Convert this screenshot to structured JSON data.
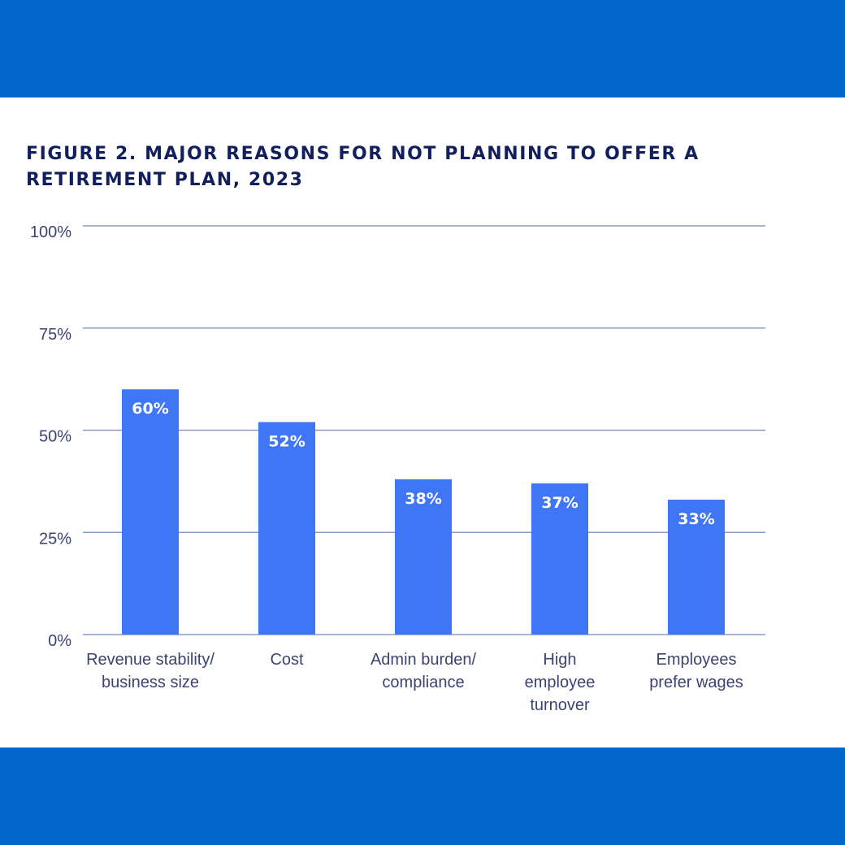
{
  "colors": {
    "band": "#0068cc",
    "title": "#121f5c",
    "bar": "#3f76f6",
    "grid": "#8a9cc4",
    "axis_text": "#3b4470",
    "data_label": "#ffffff"
  },
  "chart_data": {
    "type": "bar",
    "title": "FIGURE 2. MAJOR REASONS FOR NOT PLANNING TO OFFER A RETIREMENT PLAN, 2023",
    "categories": [
      [
        "Revenue stability/",
        "business size"
      ],
      [
        "Cost"
      ],
      [
        "Admin burden/",
        "compliance"
      ],
      [
        "High",
        "employee",
        "turnover"
      ],
      [
        "Employees",
        "prefer wages"
      ]
    ],
    "values": [
      60,
      52,
      38,
      37,
      33
    ],
    "data_labels": [
      "60%",
      "52%",
      "38%",
      "37%",
      "33%"
    ],
    "ylim": [
      0,
      100
    ],
    "yticks": [
      0,
      25,
      50,
      75,
      100
    ],
    "ytick_labels": [
      "0%",
      "25%",
      "50%",
      "75%",
      "100%"
    ],
    "grid": true,
    "legend": "none"
  }
}
